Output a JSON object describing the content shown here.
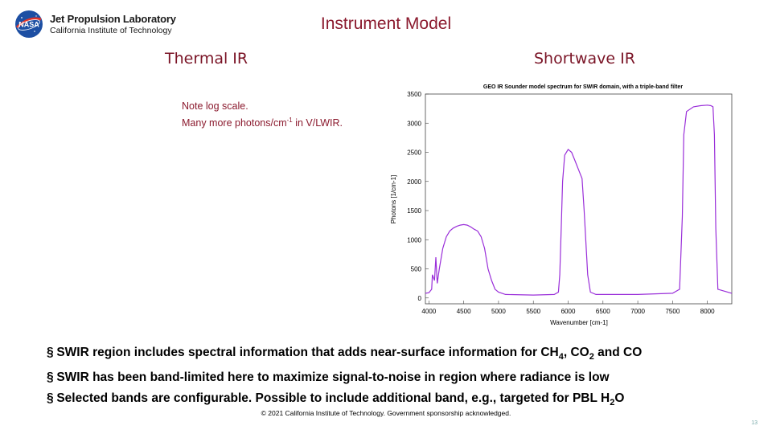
{
  "logo": {
    "org_name": "Jet Propulsion Laboratory",
    "org_sub": "California Institute of Technology",
    "nasa_text": "NASA"
  },
  "title": "Instrument Model",
  "sections": {
    "thermal": "Thermal IR",
    "shortwave": "Shortwave IR"
  },
  "note": {
    "line1": "Note log scale.",
    "line2_pre": "Many more photons/cm",
    "line2_sup": "-1",
    "line2_post": " in V/LWIR."
  },
  "bullets": [
    {
      "marker": "§",
      "parts": [
        "SWIR region includes spectral information that adds near-surface information for CH",
        "4",
        ", CO",
        "2",
        " and CO"
      ]
    },
    {
      "marker": "§",
      "parts": [
        "SWIR has been band-limited here to maximize signal-to-noise in region where radiance is low"
      ]
    },
    {
      "marker": "§",
      "parts": [
        "Selected bands are configurable. Possible to include additional band, e.g., targeted for PBL H",
        "2",
        "O"
      ]
    }
  ],
  "footer": "© 2021 California Institute of Technology. Government sponsorship acknowledged.",
  "page_number": "13",
  "colors": {
    "title": "#8b1a2e",
    "trace": "#9a2fd9"
  },
  "chart_data": {
    "type": "line",
    "title": "GEO IR Sounder model spectrum for SWIR domain, with a triple-band filter",
    "xlabel": "Wavenumber [cm-1]",
    "ylabel": "Photons [1/cm-1]",
    "xlim": [
      3950,
      8350
    ],
    "ylim": [
      -100,
      3500
    ],
    "x_ticks": [
      4000,
      4500,
      5000,
      5500,
      6000,
      6500,
      7000,
      7500,
      8000
    ],
    "y_ticks": [
      0,
      500,
      1000,
      1500,
      2000,
      2500,
      3000,
      3500
    ],
    "grid": false,
    "series": [
      {
        "x": [
          3950,
          4000,
          4040,
          4050,
          4080,
          4100,
          4120,
          4150,
          4200,
          4250,
          4300,
          4350,
          4400,
          4450,
          4500,
          4550,
          4600,
          4650,
          4700,
          4750,
          4800,
          4850,
          4900,
          4950,
          5000,
          5050,
          5100,
          5500,
          5800,
          5860,
          5880,
          5900,
          5920,
          5950,
          6000,
          6050,
          6100,
          6150,
          6200,
          6230,
          6280,
          6320,
          6400,
          7000,
          7500,
          7600,
          7640,
          7660,
          7700,
          7800,
          7900,
          8000,
          8050,
          8080,
          8100,
          8120,
          8150,
          8350
        ],
        "y": [
          80,
          90,
          150,
          400,
          300,
          700,
          250,
          500,
          850,
          1050,
          1150,
          1200,
          1230,
          1250,
          1260,
          1250,
          1220,
          1180,
          1150,
          1050,
          850,
          500,
          300,
          150,
          100,
          80,
          60,
          50,
          60,
          100,
          400,
          1200,
          2000,
          2450,
          2550,
          2500,
          2350,
          2200,
          2050,
          1500,
          400,
          100,
          60,
          60,
          80,
          150,
          1400,
          2800,
          3200,
          3280,
          3300,
          3310,
          3300,
          3280,
          2800,
          1200,
          150,
          80
        ]
      }
    ]
  }
}
